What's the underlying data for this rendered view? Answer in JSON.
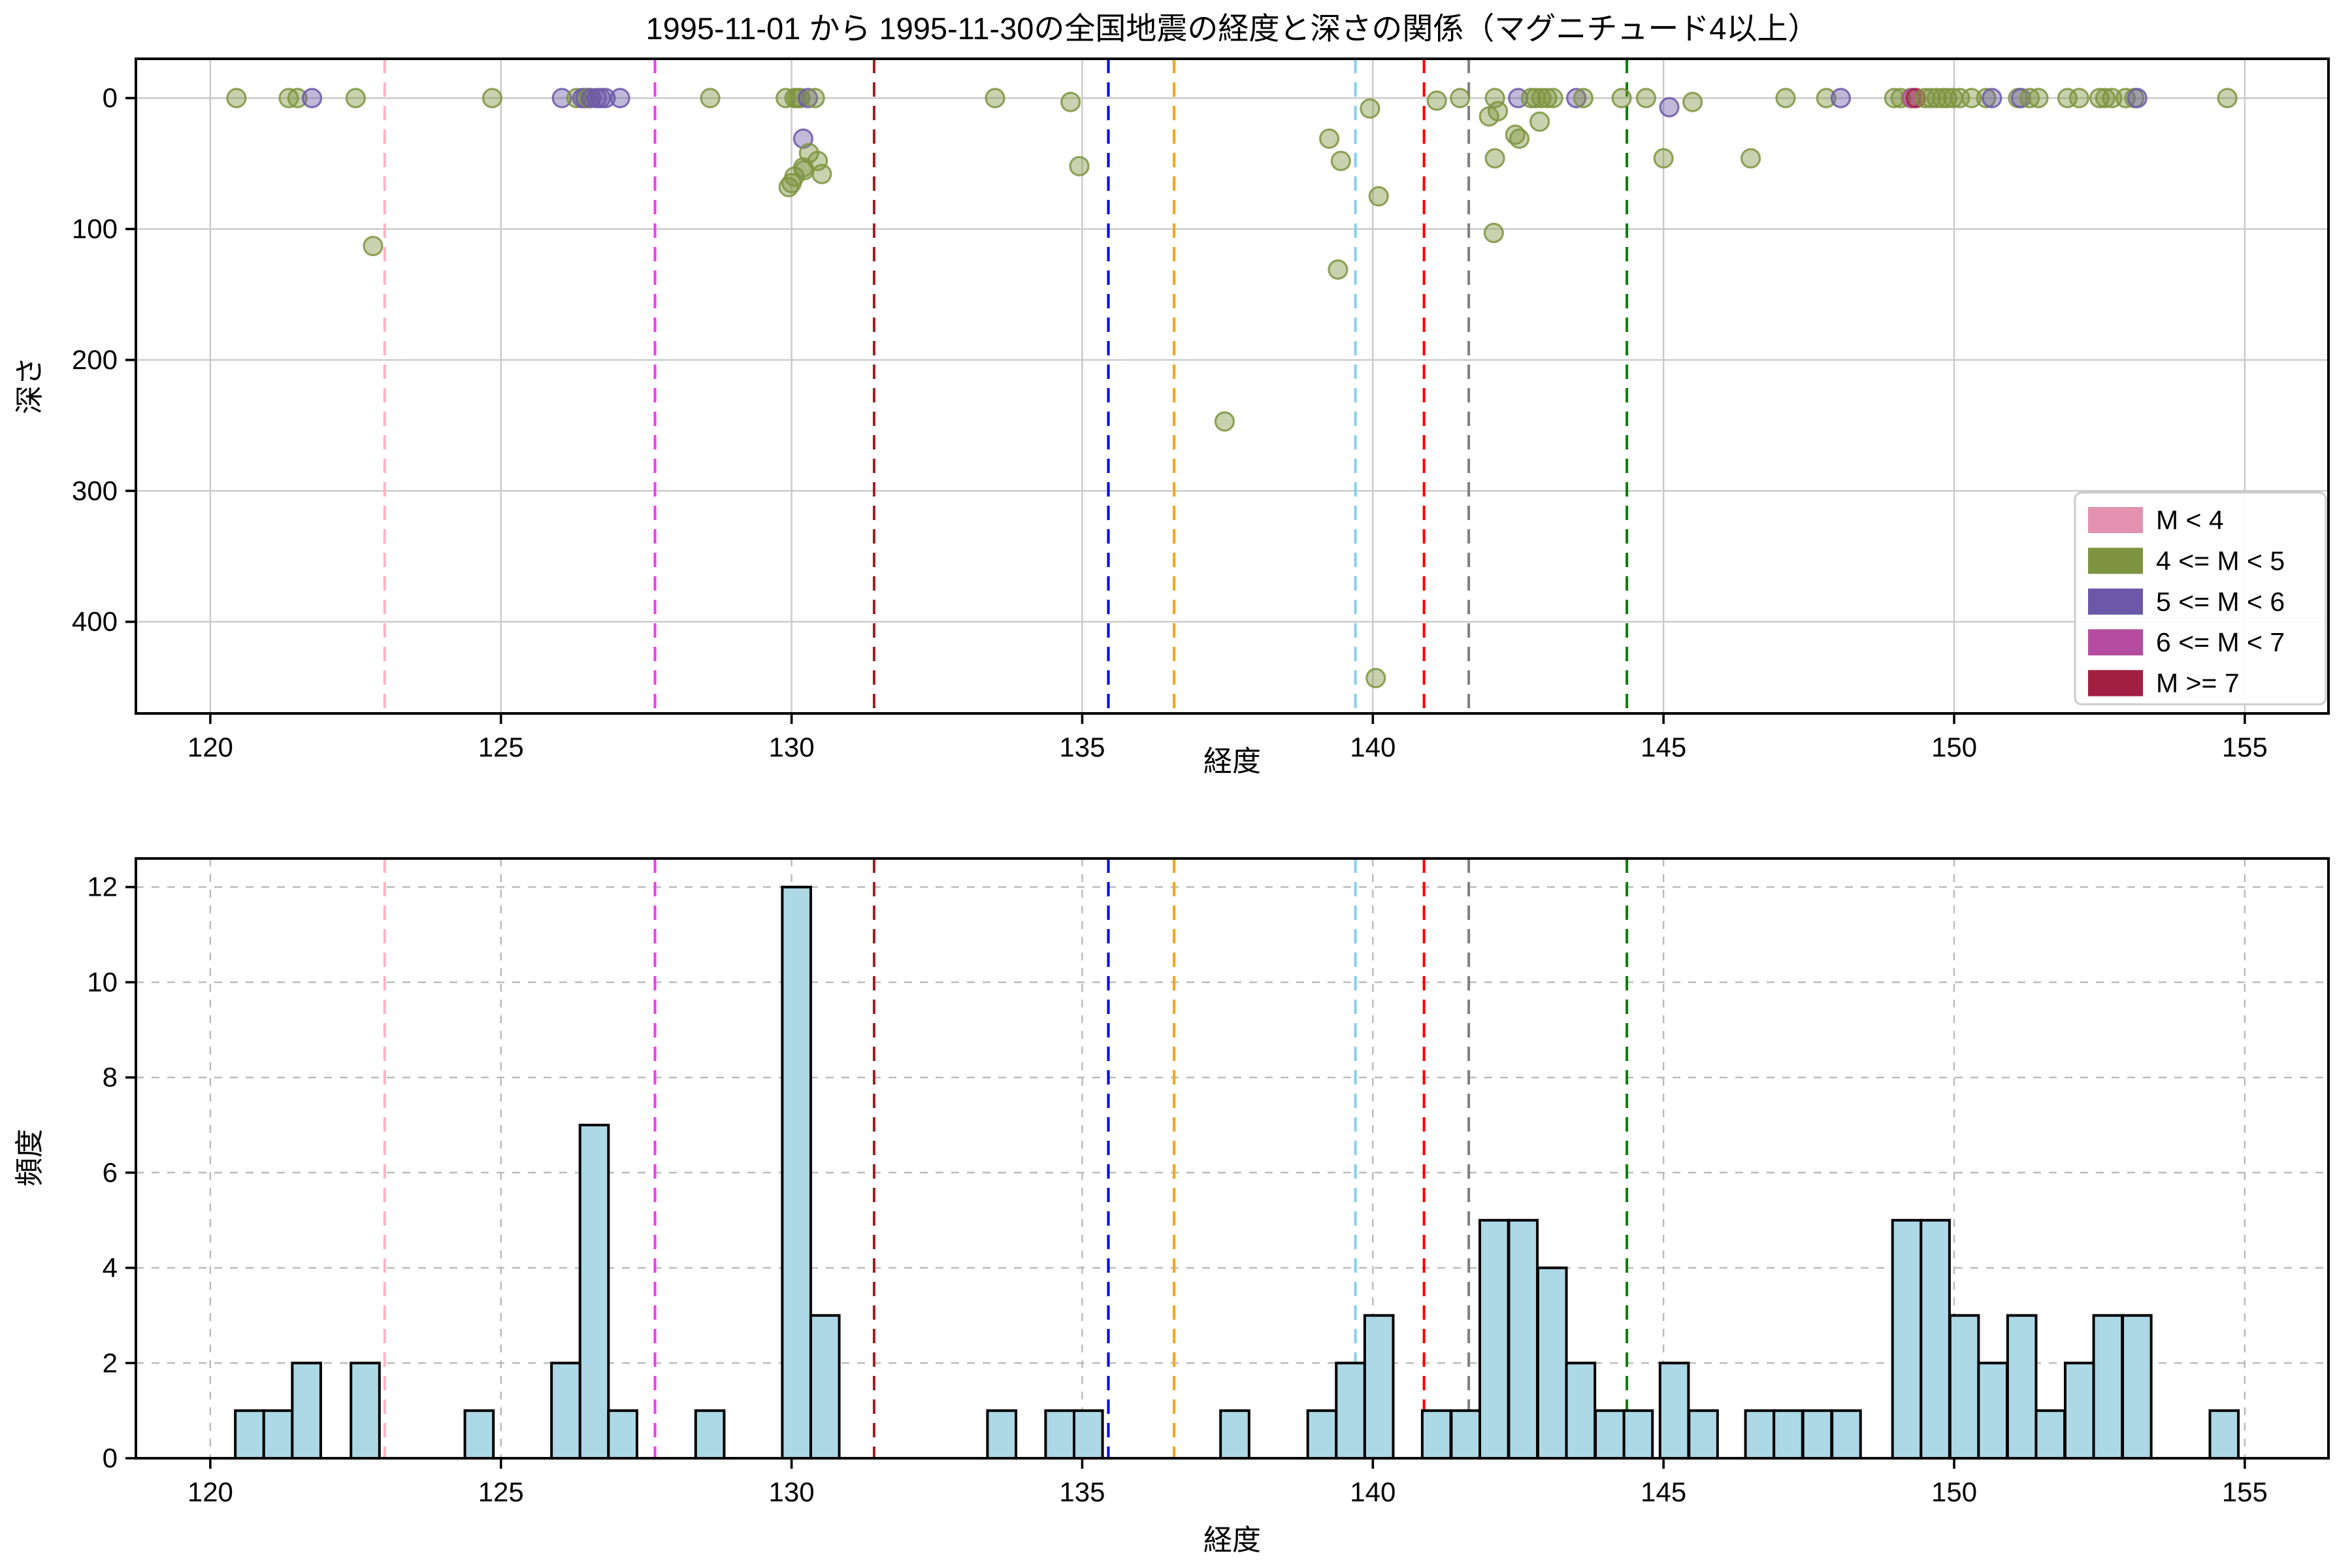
{
  "title": "1995-11-01 から 1995-11-30の全国地震の経度と深さの関係（マグニチュード4以上）",
  "chart_data": [
    {
      "type": "scatter",
      "title": "1995-11-01 から 1995-11-30の全国地震の経度と深さの関係（マグニチュード4以上）",
      "xlabel": "経度",
      "ylabel": "深さ",
      "xlim": [
        118.72,
        156.44
      ],
      "ylim_depth_inverted": [
        -30,
        470
      ],
      "x_ticks": [
        120,
        125,
        130,
        135,
        140,
        145,
        150,
        155
      ],
      "y_ticks": [
        0,
        100,
        200,
        300,
        400
      ],
      "grid": "solid",
      "legend_position": "lower right",
      "points": [
        [
          120.45,
          0,
          "g"
        ],
        [
          121.35,
          0,
          "g"
        ],
        [
          121.5,
          0,
          "g"
        ],
        [
          121.75,
          0,
          "p"
        ],
        [
          122.5,
          0,
          "g"
        ],
        [
          122.8,
          113,
          "g"
        ],
        [
          124.85,
          0,
          "g"
        ],
        [
          126.05,
          0,
          "p"
        ],
        [
          126.3,
          0,
          "g"
        ],
        [
          126.4,
          0,
          "p"
        ],
        [
          126.45,
          0,
          "p"
        ],
        [
          126.5,
          0,
          "g"
        ],
        [
          126.55,
          0,
          "p"
        ],
        [
          126.65,
          0,
          "p"
        ],
        [
          126.72,
          0,
          "p"
        ],
        [
          126.8,
          0,
          "p"
        ],
        [
          127.05,
          0,
          "p"
        ],
        [
          128.6,
          0,
          "g"
        ],
        [
          129.9,
          0,
          "g"
        ],
        [
          130.05,
          0,
          "g"
        ],
        [
          130.1,
          0,
          "g"
        ],
        [
          130.15,
          0,
          "g"
        ],
        [
          130.28,
          0,
          "p"
        ],
        [
          130.2,
          31,
          "p"
        ],
        [
          130.3,
          42,
          "g"
        ],
        [
          130.2,
          53,
          "g"
        ],
        [
          130.22,
          55,
          "g"
        ],
        [
          130.05,
          60,
          "g"
        ],
        [
          130.0,
          65,
          "g"
        ],
        [
          129.95,
          68,
          "g"
        ],
        [
          130.4,
          0,
          "g"
        ],
        [
          130.45,
          48,
          "g"
        ],
        [
          130.52,
          58,
          "g"
        ],
        [
          133.5,
          0,
          "g"
        ],
        [
          134.8,
          3,
          "g"
        ],
        [
          134.95,
          52,
          "g"
        ],
        [
          137.45,
          247,
          "g"
        ],
        [
          139.25,
          31,
          "g"
        ],
        [
          139.45,
          48,
          "g"
        ],
        [
          139.4,
          131,
          "g"
        ],
        [
          139.95,
          8,
          "g"
        ],
        [
          140.1,
          75,
          "g"
        ],
        [
          140.05,
          443,
          "g"
        ],
        [
          141.1,
          2,
          "g"
        ],
        [
          141.5,
          0,
          "g"
        ],
        [
          142.1,
          0,
          "g"
        ],
        [
          142.15,
          10,
          "g"
        ],
        [
          142.0,
          14,
          "g"
        ],
        [
          142.1,
          46,
          "g"
        ],
        [
          142.08,
          103,
          "g"
        ],
        [
          142.5,
          0,
          "p"
        ],
        [
          142.45,
          28,
          "g"
        ],
        [
          142.52,
          31,
          "g"
        ],
        [
          142.72,
          0,
          "g"
        ],
        [
          142.8,
          0,
          "g"
        ],
        [
          142.9,
          0,
          "g"
        ],
        [
          143.0,
          0,
          "g"
        ],
        [
          142.87,
          18,
          "g"
        ],
        [
          143.1,
          0,
          "g"
        ],
        [
          143.5,
          0,
          "p"
        ],
        [
          143.62,
          0,
          "g"
        ],
        [
          144.28,
          0,
          "g"
        ],
        [
          144.7,
          0,
          "g"
        ],
        [
          145.1,
          7,
          "p"
        ],
        [
          145.0,
          46,
          "g"
        ],
        [
          145.5,
          3,
          "g"
        ],
        [
          146.5,
          46,
          "g"
        ],
        [
          147.1,
          0,
          "g"
        ],
        [
          147.8,
          0,
          "g"
        ],
        [
          148.05,
          0,
          "p"
        ],
        [
          148.97,
          0,
          "g"
        ],
        [
          149.08,
          0,
          "g"
        ],
        [
          149.25,
          0,
          "g"
        ],
        [
          149.28,
          0,
          "m"
        ],
        [
          149.34,
          0,
          "r"
        ],
        [
          149.5,
          0,
          "g"
        ],
        [
          149.6,
          0,
          "g"
        ],
        [
          149.7,
          0,
          "g"
        ],
        [
          149.8,
          0,
          "g"
        ],
        [
          149.88,
          0,
          "g"
        ],
        [
          149.98,
          0,
          "g"
        ],
        [
          150.1,
          0,
          "g"
        ],
        [
          150.3,
          0,
          "g"
        ],
        [
          150.55,
          0,
          "g"
        ],
        [
          150.65,
          0,
          "p"
        ],
        [
          151.1,
          0,
          "g"
        ],
        [
          151.15,
          0,
          "p"
        ],
        [
          151.3,
          0,
          "g"
        ],
        [
          151.45,
          0,
          "g"
        ],
        [
          151.95,
          0,
          "g"
        ],
        [
          152.15,
          0,
          "g"
        ],
        [
          152.5,
          0,
          "g"
        ],
        [
          152.6,
          0,
          "g"
        ],
        [
          152.72,
          0,
          "g"
        ],
        [
          152.95,
          0,
          "g"
        ],
        [
          153.1,
          0,
          "g"
        ],
        [
          153.15,
          0,
          "p"
        ],
        [
          154.7,
          0,
          "g"
        ]
      ]
    },
    {
      "type": "bar",
      "xlabel": "経度",
      "ylabel": "頻度",
      "xlim": [
        118.72,
        156.44
      ],
      "ylim": [
        0,
        12.6
      ],
      "x_ticks": [
        120,
        125,
        130,
        135,
        140,
        145,
        150,
        155
      ],
      "y_ticks": [
        0,
        2,
        4,
        6,
        8,
        10,
        12
      ],
      "grid": "dashed",
      "bin_width": 0.49,
      "bars": [
        [
          120.43,
          1
        ],
        [
          120.92,
          1
        ],
        [
          121.41,
          2
        ],
        [
          122.42,
          2
        ],
        [
          124.38,
          1
        ],
        [
          125.87,
          2
        ],
        [
          126.36,
          7
        ],
        [
          126.85,
          1
        ],
        [
          128.35,
          1
        ],
        [
          129.84,
          12
        ],
        [
          130.33,
          3
        ],
        [
          133.37,
          1
        ],
        [
          134.37,
          1
        ],
        [
          134.86,
          1
        ],
        [
          137.38,
          1
        ],
        [
          138.88,
          1
        ],
        [
          139.37,
          2
        ],
        [
          139.86,
          3
        ],
        [
          140.85,
          1
        ],
        [
          141.35,
          1
        ],
        [
          141.84,
          5
        ],
        [
          142.34,
          5
        ],
        [
          142.84,
          4
        ],
        [
          143.33,
          2
        ],
        [
          143.83,
          1
        ],
        [
          144.32,
          1
        ],
        [
          144.94,
          2
        ],
        [
          145.44,
          1
        ],
        [
          146.41,
          1
        ],
        [
          146.9,
          1
        ],
        [
          147.4,
          1
        ],
        [
          147.9,
          1
        ],
        [
          148.94,
          5
        ],
        [
          149.43,
          5
        ],
        [
          149.93,
          3
        ],
        [
          150.42,
          2
        ],
        [
          150.92,
          3
        ],
        [
          151.41,
          1
        ],
        [
          151.91,
          2
        ],
        [
          152.4,
          3
        ],
        [
          152.9,
          3
        ],
        [
          154.4,
          1
        ]
      ],
      "bar_fill": "#add8e6",
      "bar_edge": "#000000"
    }
  ],
  "top": {
    "xlabel": "経度",
    "ylabel": "深さ"
  },
  "bottom": {
    "xlabel": "経度",
    "ylabel": "頻度"
  },
  "legend": {
    "entries": [
      {
        "label": "M < 4",
        "color": "#e292ae"
      },
      {
        "label": "4 <= M < 5",
        "color": "#7e9440"
      },
      {
        "label": "5 <= M < 6",
        "color": "#6b58a8"
      },
      {
        "label": "6 <= M < 7",
        "color": "#b44da0"
      },
      {
        "label": "M >= 7",
        "color": "#a21f42"
      }
    ]
  },
  "class_colors": {
    "k": "#e292ae",
    "g": "#7e9440",
    "p": "#6b58a8",
    "m": "#b44da0",
    "r": "#a21f42"
  },
  "vlines": [
    {
      "x": 123.0,
      "color": "#ffb3c1",
      "name": "vline-pink"
    },
    {
      "x": 127.65,
      "color": "#ee3cee",
      "name": "vline-magenta"
    },
    {
      "x": 131.42,
      "color": "#a02020",
      "name": "vline-darkred"
    },
    {
      "x": 135.45,
      "color": "#0000ee",
      "name": "vline-blue"
    },
    {
      "x": 136.58,
      "color": "#ffa500",
      "name": "vline-orange"
    },
    {
      "x": 139.7,
      "color": "#87ceeb",
      "name": "vline-skyblue"
    },
    {
      "x": 140.88,
      "color": "#ff0000",
      "name": "vline-red"
    },
    {
      "x": 141.65,
      "color": "#7f7f7f",
      "name": "vline-gray"
    },
    {
      "x": 144.37,
      "color": "#008000",
      "name": "vline-green"
    }
  ],
  "style": {
    "grid_color_top": "#c8c8c8",
    "grid_color_bottom": "#b9b9b9",
    "spine_color": "#000000",
    "legend_border": "#cccccc"
  }
}
